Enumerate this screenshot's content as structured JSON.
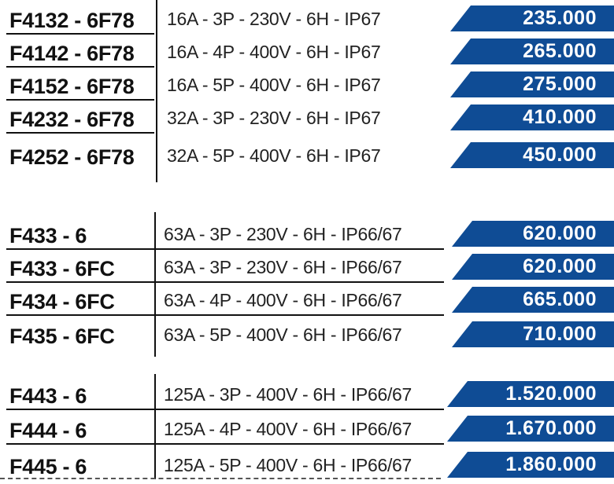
{
  "groups": [
    {
      "rows": [
        {
          "code": "F4132 - 6F78",
          "spec": "16A - 3P - 230V - 6H - IP67",
          "price": "235.000"
        },
        {
          "code": "F4142 - 6F78",
          "spec": "16A - 4P - 400V - 6H - IP67",
          "price": "265.000"
        },
        {
          "code": "F4152 - 6F78",
          "spec": "16A - 5P - 400V - 6H - IP67",
          "price": "275.000"
        },
        {
          "code": "F4232 - 6F78",
          "spec": "32A - 3P - 230V - 6H - IP67",
          "price": "410.000"
        },
        {
          "code": "F4252 - 6F78",
          "spec": "32A - 5P - 400V - 6H - IP67",
          "price": "450.000"
        }
      ]
    },
    {
      "rows": [
        {
          "code": "F433 - 6",
          "spec": "63A - 3P - 230V - 6H - IP66/67",
          "price": "620.000"
        },
        {
          "code": "F433 - 6FC",
          "spec": "63A - 3P - 230V - 6H - IP66/67",
          "price": "620.000"
        },
        {
          "code": "F434 - 6FC",
          "spec": "63A - 4P - 400V - 6H - IP66/67",
          "price": "665.000"
        },
        {
          "code": "F435 - 6FC",
          "spec": "63A - 5P - 400V - 6H - IP66/67",
          "price": "710.000"
        }
      ]
    },
    {
      "rows": [
        {
          "code": "F443 - 6",
          "spec": "125A - 3P - 400V - 6H - IP66/67",
          "price": "1.520.000"
        },
        {
          "code": "F444 - 6",
          "spec": "125A - 4P - 400V - 6H - IP66/67",
          "price": "1.670.000"
        },
        {
          "code": "F445 - 6",
          "spec": "125A - 5P - 400V - 6H - IP66/67",
          "price": "1.860.000"
        }
      ]
    }
  ],
  "colors": {
    "price_band": "#0f4c95",
    "text": "#111111"
  }
}
